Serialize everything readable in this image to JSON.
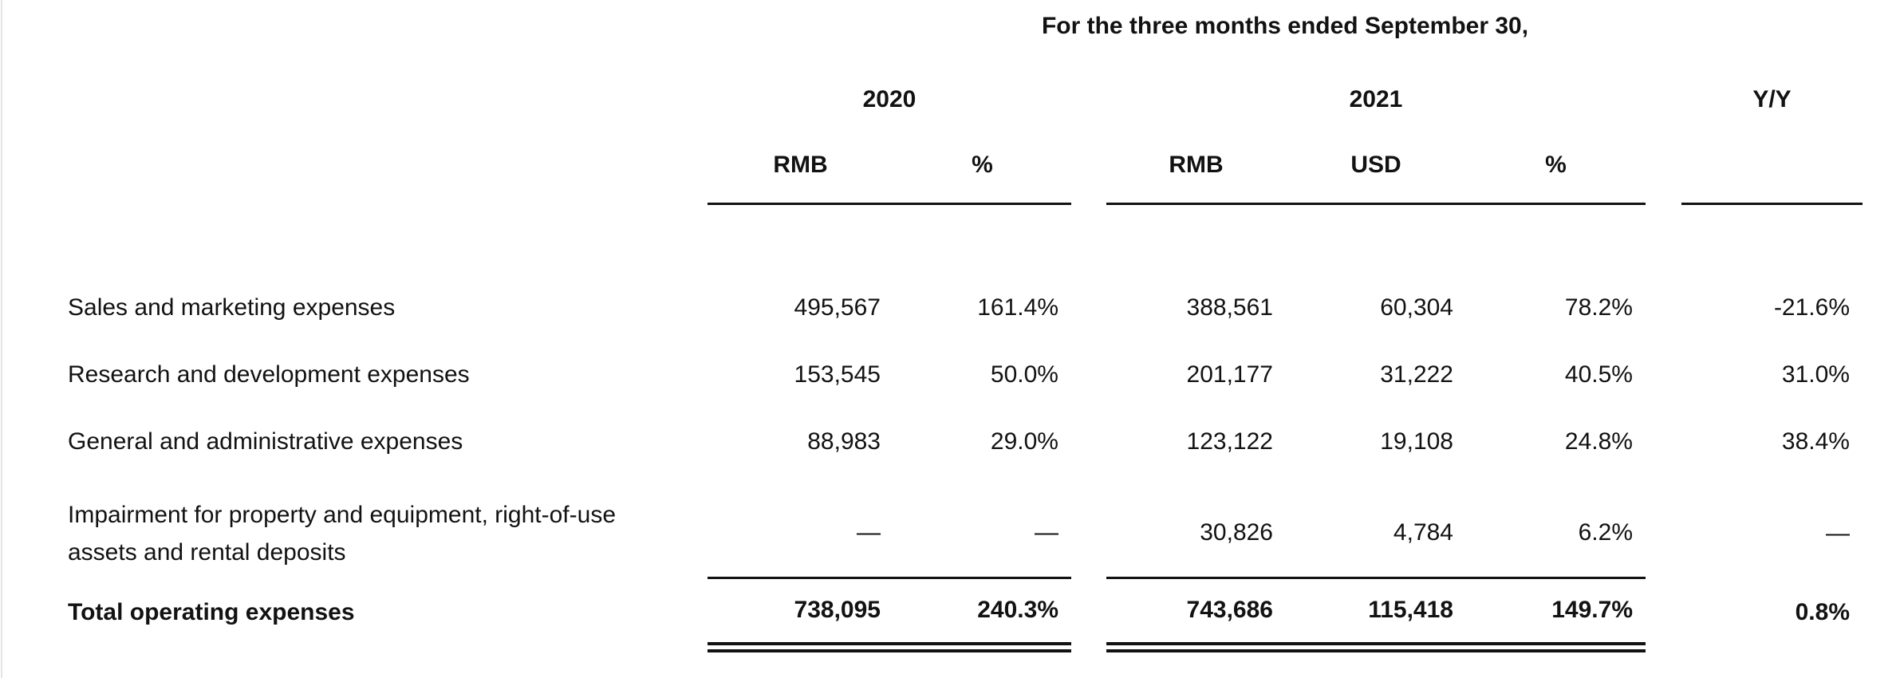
{
  "colors": {
    "text": "#121212",
    "rule": "#121212",
    "page_edge": "#e4e4e4"
  },
  "table": {
    "title": "For the three months ended September 30,",
    "col_groups": [
      {
        "label": "2020",
        "columns": [
          "RMB",
          "%"
        ]
      },
      {
        "label": "2021",
        "columns": [
          "RMB",
          "USD",
          "%"
        ]
      },
      {
        "label": "Y/Y",
        "columns": []
      }
    ],
    "rows": [
      {
        "label": "Sales and marketing expenses",
        "values": [
          "495,567",
          "161.4%",
          "388,561",
          "60,304",
          "78.2%",
          "-21.6%"
        ]
      },
      {
        "label": "Research and development expenses",
        "values": [
          "153,545",
          "50.0%",
          "201,177",
          "31,222",
          "40.5%",
          "31.0%"
        ]
      },
      {
        "label": "General and administrative expenses",
        "values": [
          "88,983",
          "29.0%",
          "123,122",
          "19,108",
          "24.8%",
          "38.4%"
        ]
      },
      {
        "label": "Impairment for property and equipment, right-of-use\nassets and rental deposits",
        "values": [
          "—",
          "—",
          "30,826",
          "4,784",
          "6.2%",
          "—"
        ]
      },
      {
        "label": "Total operating expenses",
        "values": [
          "738,095",
          "240.3%",
          "743,686",
          "115,418",
          "149.7%",
          "0.8%"
        ]
      }
    ]
  }
}
